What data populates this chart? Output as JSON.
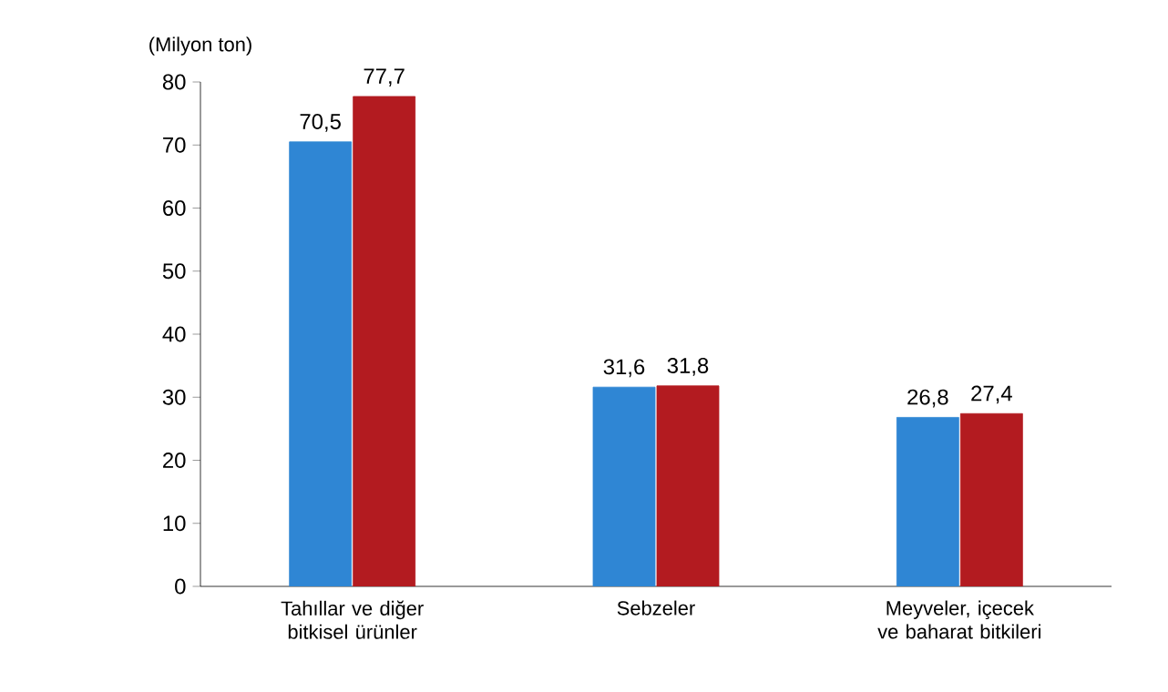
{
  "chart_data": {
    "type": "bar",
    "ylabel": "(Milyon ton)",
    "categories": [
      "Tahıllar ve diğer bitkisel ürünler",
      "Sebzeler",
      "Meyveler, içecek ve baharat bitkileri"
    ],
    "series": [
      {
        "color": "#2f86d4",
        "values": [
          70.5,
          31.6,
          26.8
        ],
        "value_labels": [
          "70,5",
          "31,6",
          "26,8"
        ]
      },
      {
        "color": "#b31b20",
        "values": [
          77.7,
          31.8,
          27.4
        ],
        "value_labels": [
          "77,7",
          "31,8",
          "27,4"
        ]
      }
    ],
    "ylim": [
      0,
      80
    ],
    "yticks": [
      0,
      10,
      20,
      30,
      40,
      50,
      60,
      70,
      80
    ]
  }
}
